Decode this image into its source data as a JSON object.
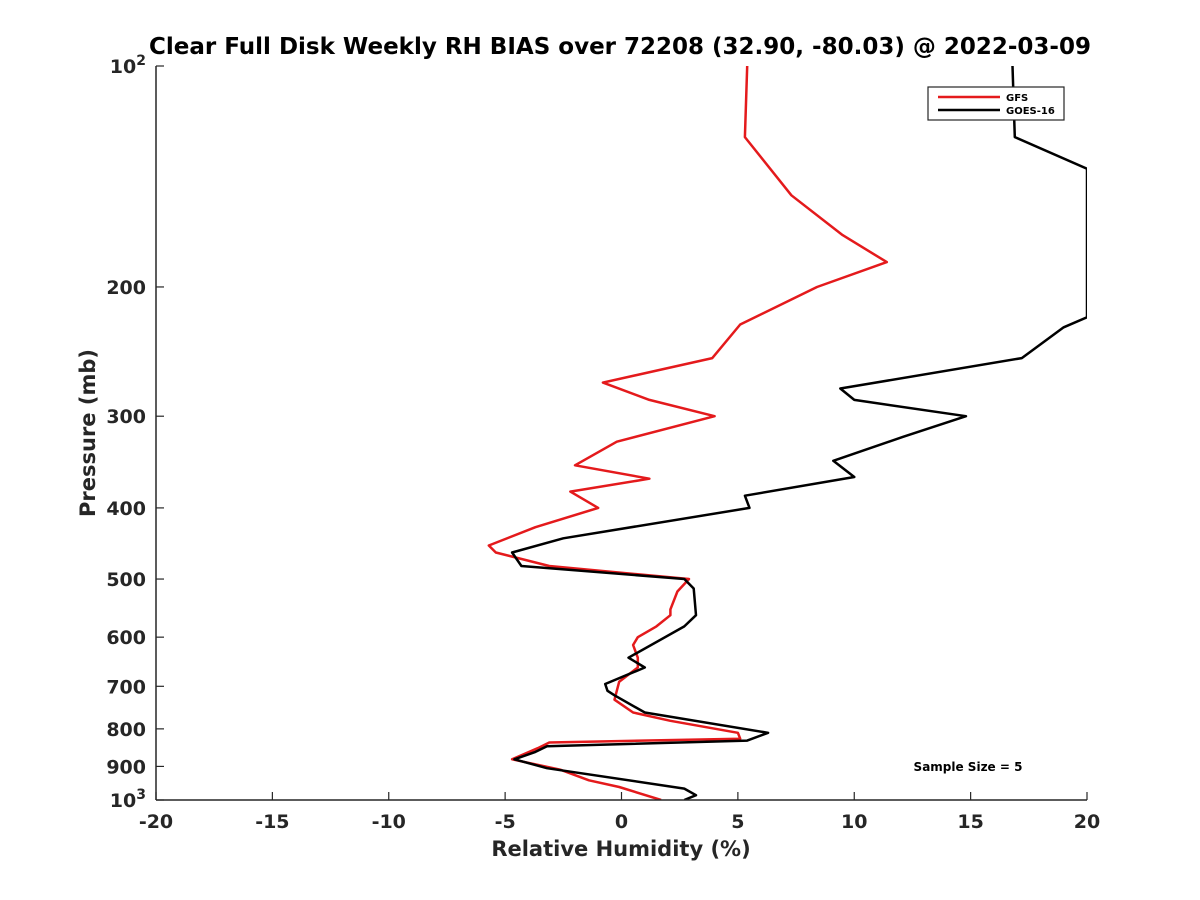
{
  "chart_data": {
    "type": "line",
    "title": "Clear Full Disk Weekly RH BIAS over 72208 (32.90, -80.03) @ 2022-03-09",
    "xlabel": "Relative Humidity (%)",
    "ylabel": "Pressure (mb)",
    "xlim": [
      -20,
      20
    ],
    "ylim": [
      1000,
      100
    ],
    "y_scale": "log",
    "y_reversed": true,
    "grid": false,
    "legend_position": "top-right",
    "x_ticks": [
      "-20",
      "-15",
      "-10",
      "-5",
      "0",
      "5",
      "10",
      "15",
      "20"
    ],
    "x_tick_values": [
      -20,
      -15,
      -10,
      -5,
      0,
      5,
      10,
      15,
      20
    ],
    "y_ticks": [
      {
        "value": 100,
        "base": "10",
        "exp": "2"
      },
      {
        "value": 200,
        "label": "200"
      },
      {
        "value": 300,
        "label": "300"
      },
      {
        "value": 400,
        "label": "400"
      },
      {
        "value": 500,
        "label": "500"
      },
      {
        "value": 600,
        "label": "600"
      },
      {
        "value": 700,
        "label": "700"
      },
      {
        "value": 800,
        "label": "800"
      },
      {
        "value": 900,
        "label": "900"
      },
      {
        "value": 1000,
        "base": "10",
        "exp": "3"
      }
    ],
    "annotation": "Sample Size = 5",
    "series": [
      {
        "name": "GFS",
        "color": "#e41a1c",
        "points": [
          [
            5.4,
            100
          ],
          [
            5.3,
            125
          ],
          [
            7.3,
            150
          ],
          [
            9.5,
            170
          ],
          [
            11.4,
            185
          ],
          [
            8.4,
            200
          ],
          [
            5.1,
            225
          ],
          [
            3.9,
            250
          ],
          [
            -0.8,
            270
          ],
          [
            1.2,
            285
          ],
          [
            4.0,
            300
          ],
          [
            -0.2,
            325
          ],
          [
            -2.0,
            350
          ],
          [
            1.2,
            365
          ],
          [
            -2.2,
            380
          ],
          [
            -1.0,
            400
          ],
          [
            -3.7,
            425
          ],
          [
            -5.7,
            450
          ],
          [
            -5.4,
            460
          ],
          [
            -3.1,
            480
          ],
          [
            2.9,
            500
          ],
          [
            2.4,
            520
          ],
          [
            2.1,
            550
          ],
          [
            2.1,
            560
          ],
          [
            1.5,
            580
          ],
          [
            0.7,
            600
          ],
          [
            0.5,
            615
          ],
          [
            0.7,
            640
          ],
          [
            0.7,
            660
          ],
          [
            -0.1,
            690
          ],
          [
            -0.2,
            710
          ],
          [
            -0.3,
            730
          ],
          [
            0.5,
            760
          ],
          [
            2.1,
            780
          ],
          [
            5.0,
            810
          ],
          [
            5.1,
            825
          ],
          [
            -3.1,
            835
          ],
          [
            -3.6,
            850
          ],
          [
            -4.7,
            880
          ],
          [
            -2.6,
            910
          ],
          [
            -1.4,
            940
          ],
          [
            -0.1,
            960
          ],
          [
            1.7,
            1000
          ]
        ]
      },
      {
        "name": "GOES-16",
        "color": "#000000",
        "points": [
          [
            16.8,
            100
          ],
          [
            16.9,
            125
          ],
          [
            20.0,
            138
          ],
          [
            20.0,
            220
          ],
          [
            19.0,
            227
          ],
          [
            17.2,
            250
          ],
          [
            9.4,
            275
          ],
          [
            10.0,
            285
          ],
          [
            14.8,
            300
          ],
          [
            12.1,
            320
          ],
          [
            9.1,
            345
          ],
          [
            10.0,
            363
          ],
          [
            5.3,
            385
          ],
          [
            5.5,
            400
          ],
          [
            -2.5,
            440
          ],
          [
            -4.7,
            460
          ],
          [
            -4.3,
            480
          ],
          [
            2.7,
            500
          ],
          [
            3.1,
            515
          ],
          [
            3.2,
            560
          ],
          [
            2.7,
            580
          ],
          [
            0.3,
            640
          ],
          [
            1.0,
            660
          ],
          [
            -0.7,
            695
          ],
          [
            -0.6,
            710
          ],
          [
            -0.3,
            720
          ],
          [
            1.0,
            760
          ],
          [
            6.3,
            810
          ],
          [
            5.4,
            830
          ],
          [
            -3.2,
            845
          ],
          [
            -3.7,
            860
          ],
          [
            -4.6,
            880
          ],
          [
            -3.2,
            905
          ],
          [
            2.7,
            965
          ],
          [
            3.2,
            985
          ],
          [
            2.7,
            1000
          ]
        ]
      }
    ]
  }
}
